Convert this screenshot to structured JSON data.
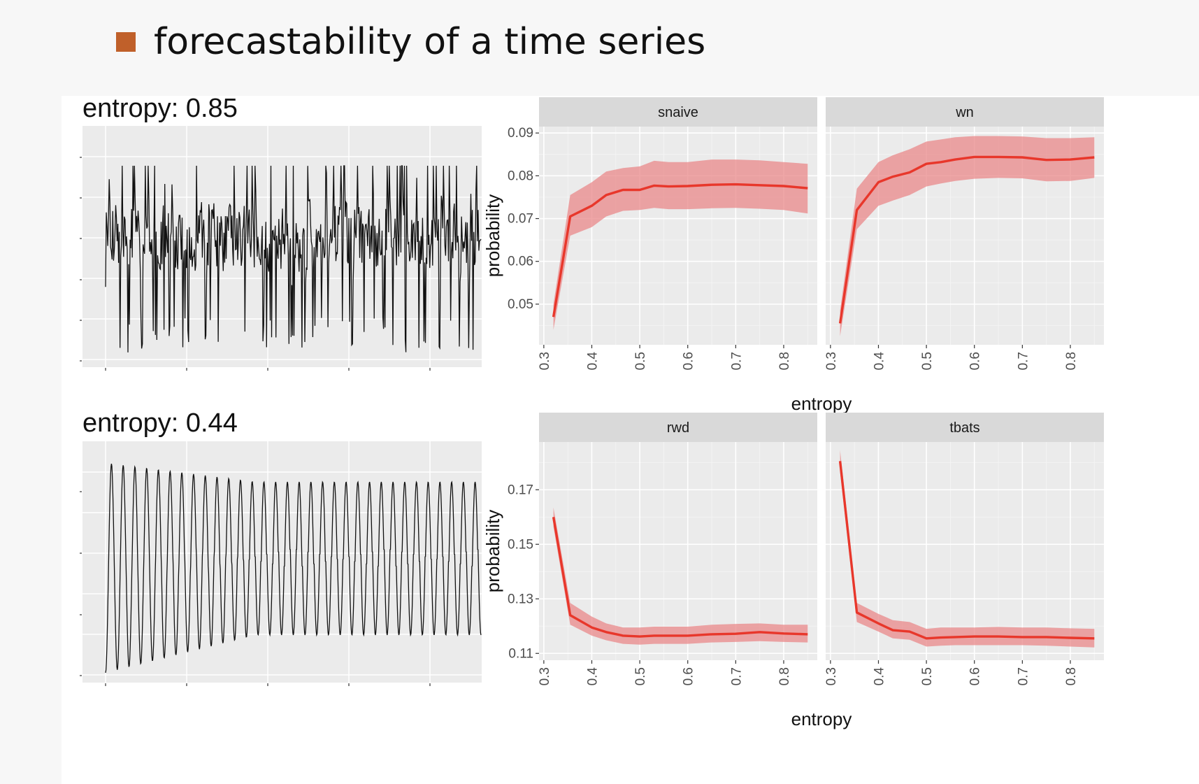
{
  "slide": {
    "title": "forecastability of a time series",
    "accent_color": "#c0602a"
  },
  "left_panels": [
    {
      "title": "entropy: 0.85",
      "entropy": 0.85,
      "pattern": "noisy-spiky"
    },
    {
      "title": "entropy: 0.44",
      "entropy": 0.44,
      "pattern": "smooth-periodic",
      "cycles": 32
    }
  ],
  "chart_data": {
    "type": "line",
    "xlabel": "entropy",
    "ylabel": "probability",
    "line_color": "#e8372b",
    "ribbon_color": "#e9888a",
    "background": "#ebebeb",
    "x_ticks": [
      0.3,
      0.4,
      0.5,
      0.6,
      0.7,
      0.8
    ],
    "x_tick_labels": [
      "0.3",
      "0.4",
      "0.5",
      "0.6",
      "0.7",
      "0.8"
    ],
    "xlim": [
      0.29,
      0.87
    ],
    "x": [
      0.32,
      0.355,
      0.4,
      0.43,
      0.465,
      0.5,
      0.53,
      0.56,
      0.6,
      0.65,
      0.7,
      0.75,
      0.8,
      0.85
    ],
    "rows": [
      {
        "ylim": [
          0.0405,
          0.0915
        ],
        "y_ticks": [
          0.05,
          0.06,
          0.07,
          0.08,
          0.09
        ],
        "y_tick_labels": [
          "0.05",
          "0.06",
          "0.07",
          "0.08",
          "0.09"
        ],
        "facets": [
          {
            "name": "snaive",
            "values": [
              0.047,
              0.0705,
              0.073,
              0.0755,
              0.0767,
              0.0767,
              0.0777,
              0.0775,
              0.0776,
              0.0779,
              0.078,
              0.0778,
              0.0776,
              0.0771
            ],
            "lower": [
              0.044,
              0.066,
              0.068,
              0.0705,
              0.0718,
              0.072,
              0.0725,
              0.0722,
              0.0722,
              0.0724,
              0.0725,
              0.0723,
              0.072,
              0.0712
            ],
            "upper": [
              0.05,
              0.0755,
              0.0785,
              0.081,
              0.0818,
              0.0822,
              0.0835,
              0.0832,
              0.0832,
              0.0838,
              0.0838,
              0.0836,
              0.0832,
              0.0828
            ]
          },
          {
            "name": "wn",
            "values": [
              0.0455,
              0.072,
              0.0785,
              0.0798,
              0.0808,
              0.0828,
              0.0832,
              0.0838,
              0.0844,
              0.0844,
              0.0843,
              0.0837,
              0.0838,
              0.0843
            ],
            "lower": [
              0.0425,
              0.0675,
              0.073,
              0.0742,
              0.0755,
              0.0775,
              0.0782,
              0.0788,
              0.0793,
              0.0795,
              0.0794,
              0.0787,
              0.0788,
              0.0795
            ],
            "upper": [
              0.0485,
              0.077,
              0.0832,
              0.0848,
              0.0862,
              0.088,
              0.0885,
              0.089,
              0.0893,
              0.0893,
              0.0892,
              0.0888,
              0.0888,
              0.089
            ]
          }
        ]
      },
      {
        "ylim": [
          0.1075,
          0.1875
        ],
        "y_ticks": [
          0.11,
          0.13,
          0.15,
          0.17
        ],
        "y_tick_labels": [
          "0.11",
          "0.13",
          "0.15",
          "0.17"
        ],
        "facets": [
          {
            "name": "rwd",
            "values": [
              0.16,
              0.124,
              0.1195,
              0.1178,
              0.1165,
              0.1162,
              0.1165,
              0.1165,
              0.1165,
              0.117,
              0.1172,
              0.1178,
              0.1173,
              0.117
            ],
            "lower": [
              0.1565,
              0.1205,
              0.1165,
              0.1148,
              0.1135,
              0.1132,
              0.1135,
              0.1135,
              0.1135,
              0.114,
              0.1142,
              0.1145,
              0.1142,
              0.114
            ],
            "upper": [
              0.1635,
              0.1285,
              0.1235,
              0.121,
              0.1195,
              0.1195,
              0.1198,
              0.1198,
              0.1198,
              0.1205,
              0.1208,
              0.121,
              0.1205,
              0.1205
            ]
          },
          {
            "name": "tbats",
            "values": [
              0.1805,
              0.125,
              0.121,
              0.1185,
              0.118,
              0.1155,
              0.1158,
              0.116,
              0.1162,
              0.1162,
              0.116,
              0.116,
              0.1157,
              0.1155
            ],
            "lower": [
              0.1765,
              0.1215,
              0.118,
              0.1155,
              0.115,
              0.1125,
              0.1128,
              0.113,
              0.113,
              0.113,
              0.113,
              0.1128,
              0.1125,
              0.1122
            ],
            "upper": [
              0.1845,
              0.1285,
              0.1245,
              0.1222,
              0.1215,
              0.119,
              0.1195,
              0.1195,
              0.1195,
              0.1197,
              0.1195,
              0.1195,
              0.1192,
              0.119
            ]
          }
        ]
      }
    ]
  }
}
